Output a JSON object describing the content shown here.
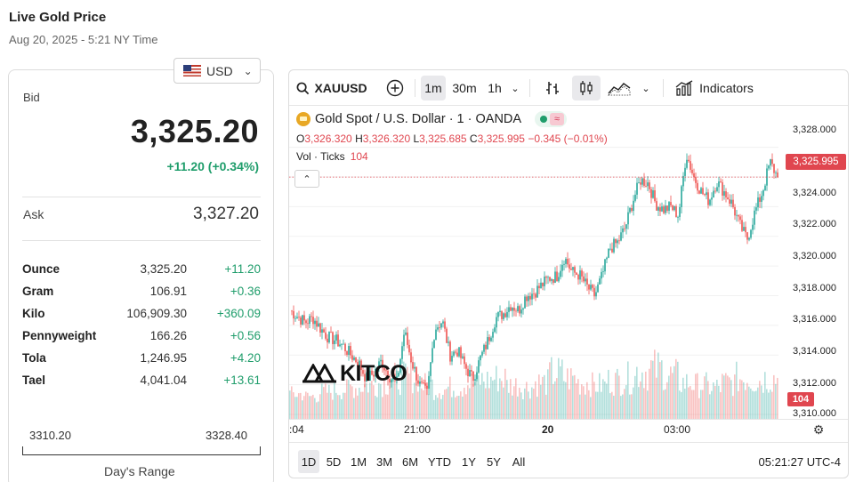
{
  "page": {
    "title": "Live Gold Price",
    "subtitle": "Aug 20, 2025 - 5:21 NY Time"
  },
  "currency": {
    "selected": "USD",
    "flag_icon": "us-flag-icon"
  },
  "quote": {
    "bid_label": "Bid",
    "bid_value": "3,325.20",
    "bid_change": "+11.20 (+0.34%)",
    "ask_label": "Ask",
    "ask_value": "3,327.20"
  },
  "units": [
    {
      "name": "Ounce",
      "price": "3,325.20",
      "change": "+11.20"
    },
    {
      "name": "Gram",
      "price": "106.91",
      "change": "+0.36"
    },
    {
      "name": "Kilo",
      "price": "106,909.30",
      "change": "+360.09"
    },
    {
      "name": "Pennyweight",
      "price": "166.26",
      "change": "+0.56"
    },
    {
      "name": "Tola",
      "price": "1,246.95",
      "change": "+4.20"
    },
    {
      "name": "Tael",
      "price": "4,041.04",
      "change": "+13.61"
    }
  ],
  "days_range": {
    "low": "3310.20",
    "high": "3328.40",
    "label": "Day's Range"
  },
  "toolbar": {
    "symbol": "XAUUSD",
    "intervals": [
      "1m",
      "30m",
      "1h"
    ],
    "active_interval": "1m",
    "indicators_label": "Indicators"
  },
  "legend": {
    "title": "Gold Spot / U.S. Dollar · 1 · OANDA",
    "o_label": "O",
    "o_value": "3,326.320",
    "h_label": "H",
    "h_value": "3,326.320",
    "l_label": "L",
    "l_value": "3,325.685",
    "c_label": "C",
    "c_value": "3,325.995",
    "change": "−0.345 (−0.01%)",
    "vol_label": "Vol · Ticks",
    "vol_value": "104"
  },
  "colors": {
    "up": "#26a69a",
    "down": "#ef5350",
    "accent_green": "#1f9d6b",
    "accent_red": "#e0464f"
  },
  "chart_data": {
    "type": "candlestick",
    "symbol": "XAUUSD",
    "y_axis_ticks": [
      "3,328.000",
      "3,326.000",
      "3,324.000",
      "3,322.000",
      "3,320.000",
      "3,318.000",
      "3,316.000",
      "3,314.000",
      "3,312.000",
      "3,310.000"
    ],
    "ylim": [
      3310,
      3328.7
    ],
    "x_axis_ticks": [
      ":04",
      "21:00",
      "20",
      "03:00"
    ],
    "last_price": "3,325.995",
    "last_volume": "104",
    "close_path": [
      3317.0,
      3316.6,
      3316.2,
      3316.5,
      3315.8,
      3315.2,
      3315.0,
      3314.6,
      3314.0,
      3313.5,
      3312.4,
      3312.8,
      3313.6,
      3312.6,
      3312.1,
      3315.6,
      3313.5,
      3312.0,
      3311.4,
      3315.8,
      3316.3,
      3314.0,
      3314.3,
      3313.2,
      3312.4,
      3313.8,
      3315.0,
      3316.5,
      3316.8,
      3317.4,
      3317.0,
      3318.0,
      3318.2,
      3318.7,
      3319.2,
      3319.3,
      3320.6,
      3319.6,
      3319.4,
      3318.6,
      3318.0,
      3319.4,
      3321.2,
      3321.6,
      3322.6,
      3324.4,
      3325.8,
      3325.6,
      3324.2,
      3323.8,
      3324.0,
      3323.4,
      3327.6,
      3326.0,
      3325.0,
      3324.4,
      3325.7,
      3325.0,
      3324.2,
      3322.8,
      3321.8,
      3323.6,
      3325.0,
      3327.0,
      3325.995
    ],
    "volume_profile": [
      0.35,
      0.3,
      0.4,
      0.45,
      0.5,
      0.55,
      0.6,
      0.7,
      0.75,
      0.55,
      0.45,
      0.5,
      0.6,
      0.65,
      0.7,
      0.55,
      0.5,
      0.6,
      0.8,
      0.7,
      0.6,
      0.55,
      0.65,
      0.7,
      0.85,
      0.9,
      0.75,
      0.6,
      0.55,
      0.5,
      0.6,
      0.7,
      0.65,
      0.7
    ]
  },
  "time_axis": {
    "ticks": [
      ":04",
      "21:00",
      "20",
      "03:00"
    ]
  },
  "ranges": {
    "buttons": [
      "1D",
      "5D",
      "1M",
      "3M",
      "6M",
      "YTD",
      "1Y",
      "5Y",
      "All"
    ],
    "active": "1D",
    "clock": "05:21:27 UTC-4"
  },
  "branding": {
    "logo_text": "KITCO"
  }
}
